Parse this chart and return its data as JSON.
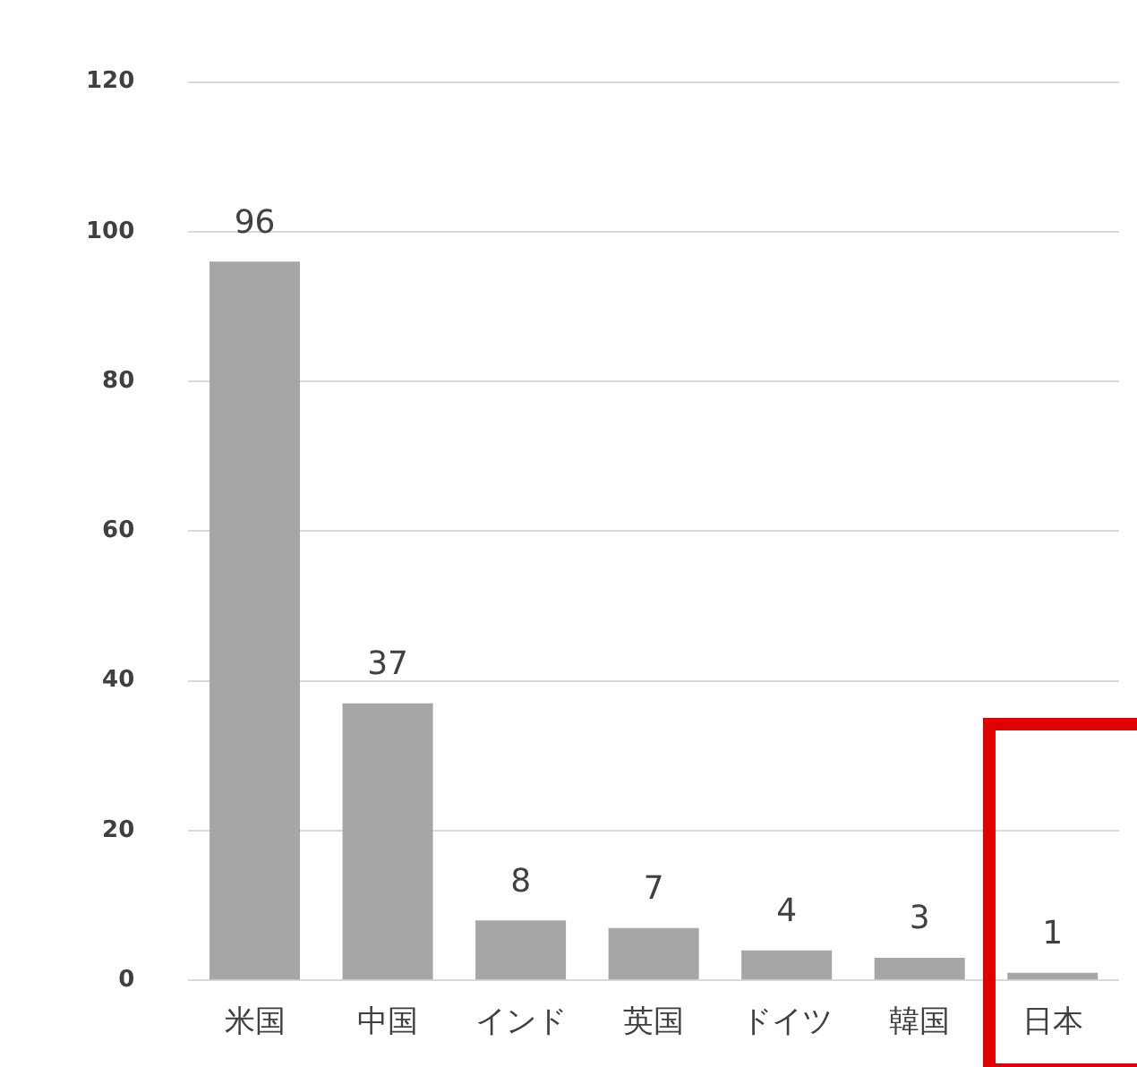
{
  "chart_data": {
    "type": "bar",
    "categories": [
      "米国",
      "中国",
      "インド",
      "英国",
      "ドイツ",
      "韓国",
      "日本"
    ],
    "values": [
      96,
      37,
      8,
      7,
      4,
      3,
      1
    ],
    "color": "#a6a6a6",
    "ylim": [
      0,
      120
    ],
    "yticks": [
      0,
      20,
      40,
      60,
      80,
      100,
      120
    ],
    "grid": "y",
    "data_labels": true,
    "legend": false
  }
}
